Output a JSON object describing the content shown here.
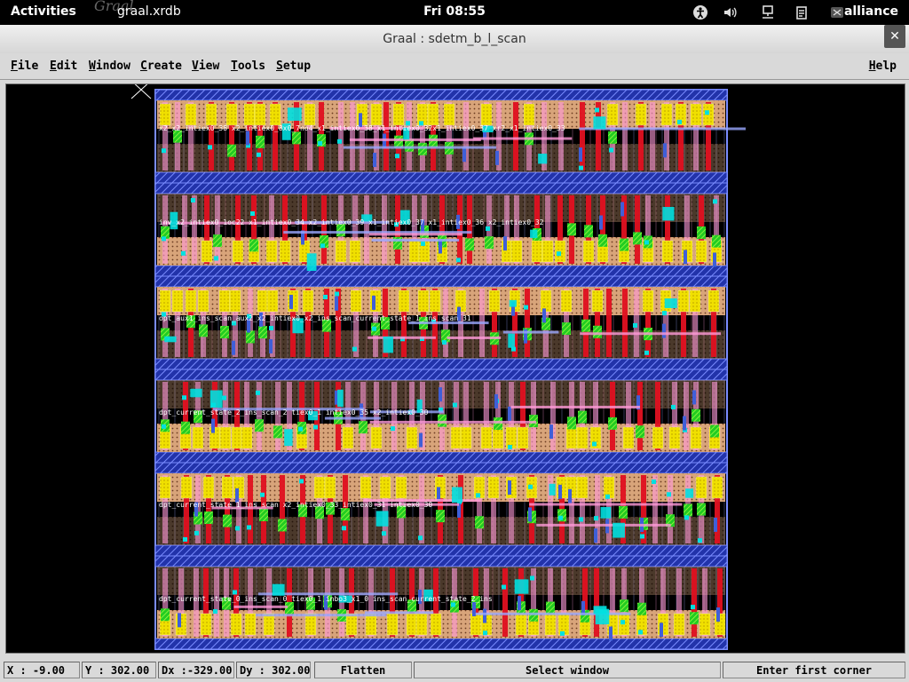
{
  "topbar": {
    "activities": "Activities",
    "app_name": "graal.xrdb",
    "app_logo_text": "Graal",
    "clock": "Fri 08:55",
    "user": "alliance",
    "icons": [
      "accessibility-icon",
      "volume-icon",
      "network-icon",
      "clipboard-icon",
      "user-icon"
    ]
  },
  "window": {
    "title": "Graal : sdetm_b_l_scan",
    "close_glyph": "✕"
  },
  "menu": {
    "items": [
      {
        "label": "File",
        "underline": "F",
        "rest": "ile"
      },
      {
        "label": "Edit",
        "underline": "E",
        "rest": "dit"
      },
      {
        "label": "Window",
        "underline": "W",
        "rest": "indow"
      },
      {
        "label": "Create",
        "underline": "C",
        "rest": "reate"
      },
      {
        "label": "View",
        "underline": "V",
        "rest": "iew"
      },
      {
        "label": "Tools",
        "underline": "T",
        "rest": "ools"
      },
      {
        "label": "Setup",
        "underline": "S",
        "rest": "etup"
      }
    ],
    "help": {
      "label": "Help",
      "underline": "H",
      "rest": "elp"
    }
  },
  "status": {
    "x": "X :  -9.00",
    "y": "Y : 302.00",
    "dx": "Dx :-329.00",
    "dy": "Dy : 302.00",
    "mode": "Flatten",
    "action": "Select window",
    "prompt": "Enter first corner"
  },
  "layout_labels": [
    "x2_x2_intiex0_38 x2_intiex0_8x0_7no4_x1_intiex0_38_x1_intiex0_32x1_intiex0_37 xr2_x1_intiex0_33",
    "inv_x2_intiex0_1oc22 x1_intiex0_34 x2_intiex0_39 x1_intiex0_37 x1_intiex0_36 x2_intiex0_32",
    "opt_aux1_ins_scan_aux2_x2_intiex0_x2_ins_scan_current_state_1_ins_scan_31",
    "dpt_current_state_2_ins_scan_2 tiex0_1 intiex0_35 x2_intiex0_30",
    "dpt_current_state_1_ins_scan x2_intiex0_33_intiex0_31 intiex0_30",
    "dpt_current_state_0_ins_scan_0 tiex0_1 inbo3_x1_0 ins_scan_current_state_2_ins"
  ],
  "colors": {
    "metal1": "#3f5fd8",
    "poly": "#e01020",
    "active": "#f0e000",
    "ndiff": "#22cc22",
    "pwell": "#d8a47a",
    "metal2": "#ff9ad8",
    "contact": "#00e0e0"
  }
}
